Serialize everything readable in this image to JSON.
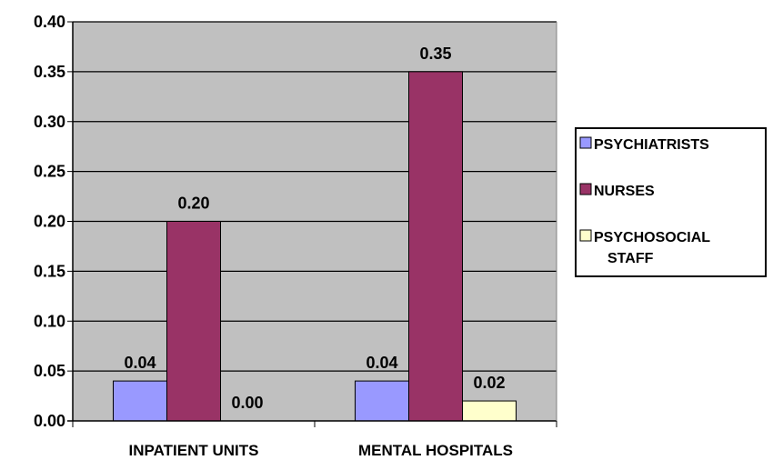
{
  "chart_data": {
    "type": "bar",
    "title": "",
    "xlabel": "",
    "ylabel": "",
    "categories": [
      "INPATIENT UNITS",
      "MENTAL HOSPITALS"
    ],
    "series": [
      {
        "name": "PSYCHIATRISTS",
        "values": [
          0.04,
          0.04
        ],
        "color": "#9999FF",
        "labels": [
          "0.04",
          "0.04"
        ]
      },
      {
        "name": "NURSES",
        "values": [
          0.2,
          0.35
        ],
        "color": "#993366",
        "labels": [
          "0.20",
          "0.35"
        ]
      },
      {
        "name": "PSYCHOSOCIAL STAFF",
        "values": [
          0.0,
          0.02
        ],
        "color": "#FFFFCC",
        "labels": [
          "0.00",
          "0.02"
        ]
      }
    ],
    "ylim": [
      0,
      0.4
    ],
    "yticks": [
      "0.00",
      "0.05",
      "0.10",
      "0.15",
      "0.20",
      "0.25",
      "0.30",
      "0.35",
      "0.40"
    ],
    "plot_background": "#C0C0C0",
    "grid": true,
    "legend_position": "right"
  }
}
